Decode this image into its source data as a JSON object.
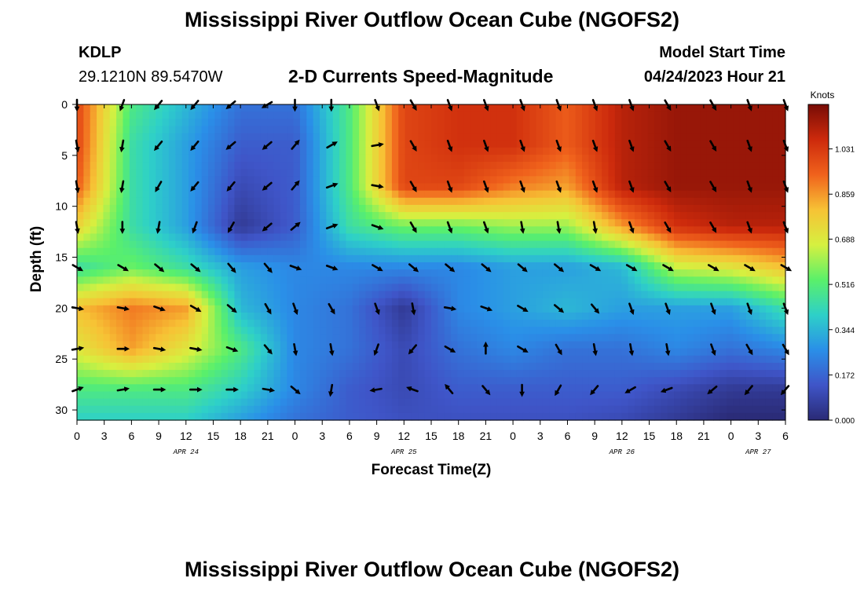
{
  "header": {
    "title": "Mississippi River Outflow Ocean Cube (NGOFS2)",
    "station_id": "KDLP",
    "coordinates": "29.1210N  89.5470W",
    "subtitle": "2-D Currents Speed-Magnitude",
    "model_start_label": "Model Start Time",
    "model_start_value": "04/24/2023 Hour 21"
  },
  "footer": {
    "title": "Mississippi River Outflow Ocean Cube (NGOFS2)"
  },
  "chart_data": {
    "type": "heatmap",
    "title": "2-D Currents Speed-Magnitude",
    "xlabel": "Forecast Time(Z)",
    "ylabel": "Depth (ft)",
    "x_tick_labels": [
      "0",
      "3",
      "6",
      "9",
      "12",
      "15",
      "18",
      "21",
      "0",
      "3",
      "6",
      "9",
      "12",
      "15",
      "18",
      "21",
      "0",
      "3",
      "6",
      "9",
      "12",
      "15",
      "18",
      "21",
      "0",
      "3",
      "6"
    ],
    "date_labels": [
      {
        "label": "APR 24",
        "at_tick": 4
      },
      {
        "label": "APR 25",
        "at_tick": 12
      },
      {
        "label": "APR 26",
        "at_tick": 20
      },
      {
        "label": "APR 27",
        "at_tick": 25
      }
    ],
    "y_ticks": [
      0,
      5,
      10,
      15,
      20,
      25,
      30
    ],
    "ylim": [
      31,
      0
    ],
    "colorbar": {
      "title": "Knots",
      "min": 0.0,
      "max": 1.2,
      "ticks": [
        "0.000",
        "0.172",
        "0.344",
        "0.516",
        "0.688",
        "0.859",
        "1.031"
      ],
      "tick_values": [
        0.0,
        0.172,
        0.344,
        0.516,
        0.688,
        0.859,
        1.031
      ],
      "colors": [
        "#2a2a75",
        "#3f55c8",
        "#2a8fe8",
        "#2ed0c8",
        "#5af06a",
        "#d6f040",
        "#f7c235",
        "#f0621c",
        "#cd2a0c",
        "#780c06"
      ]
    },
    "speed_knots_grid": {
      "x_hours": [
        0,
        6,
        12,
        18,
        24,
        30,
        36,
        42,
        48,
        54,
        60,
        66,
        72,
        78
      ],
      "depths_ft": [
        0,
        4,
        8,
        12,
        16,
        20,
        24,
        28,
        31
      ],
      "values": [
        [
          1.0,
          0.5,
          0.35,
          0.2,
          0.2,
          0.5,
          1.0,
          1.05,
          1.05,
          0.95,
          1.1,
          1.15,
          1.15,
          1.15
        ],
        [
          1.0,
          0.45,
          0.3,
          0.15,
          0.15,
          0.5,
          1.0,
          1.05,
          1.05,
          0.95,
          1.1,
          1.15,
          1.15,
          1.15
        ],
        [
          0.95,
          0.45,
          0.3,
          0.1,
          0.15,
          0.5,
          1.0,
          1.0,
          0.9,
          0.85,
          1.1,
          1.15,
          1.15,
          1.15
        ],
        [
          0.75,
          0.45,
          0.3,
          0.05,
          0.15,
          0.45,
          0.55,
          0.55,
          0.6,
          0.6,
          0.85,
          1.05,
          1.1,
          1.1
        ],
        [
          0.45,
          0.55,
          0.45,
          0.3,
          0.25,
          0.25,
          0.25,
          0.25,
          0.3,
          0.3,
          0.35,
          0.65,
          0.7,
          0.8
        ],
        [
          0.8,
          0.9,
          0.85,
          0.35,
          0.25,
          0.2,
          0.05,
          0.25,
          0.3,
          0.35,
          0.3,
          0.3,
          0.3,
          0.45
        ],
        [
          0.7,
          0.85,
          0.7,
          0.5,
          0.25,
          0.2,
          0.1,
          0.2,
          0.25,
          0.2,
          0.2,
          0.25,
          0.2,
          0.25
        ],
        [
          0.5,
          0.5,
          0.5,
          0.4,
          0.25,
          0.15,
          0.1,
          0.15,
          0.15,
          0.15,
          0.15,
          0.1,
          0.05,
          0.05
        ],
        [
          0.4,
          0.4,
          0.4,
          0.3,
          0.2,
          0.15,
          0.12,
          0.12,
          0.12,
          0.12,
          0.1,
          0.05,
          0.0,
          0.0
        ]
      ]
    },
    "vectors": {
      "depths_ft": [
        0,
        4,
        8,
        12,
        16,
        20,
        24,
        28
      ],
      "x_hours": [
        0,
        5,
        9,
        13,
        17,
        21,
        24,
        28,
        33,
        37,
        41,
        45,
        49,
        53,
        57,
        61,
        65,
        70,
        74,
        78
      ],
      "direction_deg": [
        [
          180,
          200,
          220,
          220,
          230,
          240,
          180,
          180,
          160,
          150,
          160,
          160,
          160,
          160,
          160,
          160,
          150,
          150,
          160,
          160
        ],
        [
          170,
          190,
          220,
          220,
          230,
          230,
          40,
          60,
          80,
          150,
          160,
          160,
          160,
          160,
          160,
          160,
          150,
          150,
          160,
          160
        ],
        [
          170,
          190,
          210,
          220,
          220,
          230,
          40,
          70,
          100,
          150,
          160,
          160,
          160,
          160,
          160,
          160,
          150,
          150,
          160,
          160
        ],
        [
          170,
          180,
          190,
          200,
          210,
          230,
          50,
          70,
          110,
          150,
          160,
          160,
          170,
          170,
          170,
          160,
          150,
          150,
          160,
          160
        ],
        [
          120,
          120,
          130,
          130,
          140,
          140,
          110,
          110,
          120,
          130,
          130,
          130,
          130,
          130,
          120,
          120,
          120,
          120,
          120,
          120
        ],
        [
          100,
          100,
          110,
          120,
          130,
          150,
          160,
          150,
          160,
          170,
          100,
          110,
          120,
          130,
          140,
          160,
          160,
          160,
          160,
          160
        ],
        [
          80,
          90,
          100,
          100,
          110,
          140,
          170,
          170,
          200,
          220,
          120,
          0,
          120,
          150,
          170,
          170,
          170,
          160,
          150,
          150
        ],
        [
          70,
          80,
          90,
          90,
          90,
          100,
          130,
          190,
          260,
          290,
          320,
          140,
          180,
          210,
          220,
          240,
          250,
          230,
          220,
          220
        ]
      ]
    }
  }
}
